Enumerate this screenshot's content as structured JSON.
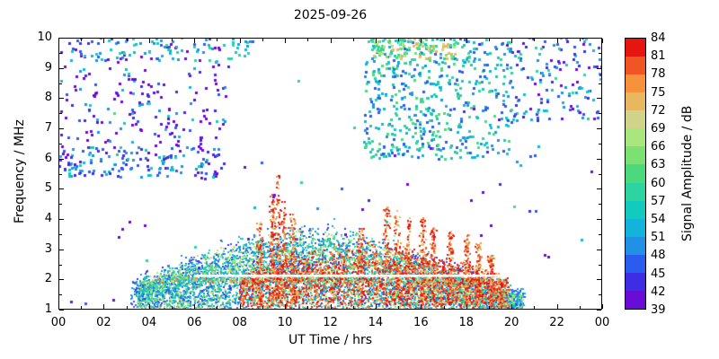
{
  "figure": {
    "background": "#ffffff",
    "frame_color": "#000000",
    "text_color": "#000000"
  },
  "chart_data": {
    "type": "heatmap",
    "title": "2025-09-26",
    "xlabel": "UT Time / hrs",
    "ylabel": "Frequency / MHz",
    "xlim": [
      0,
      24
    ],
    "ylim": [
      1,
      10
    ],
    "grid": false,
    "x_tick_values": [
      0,
      2,
      4,
      6,
      8,
      10,
      12,
      14,
      16,
      18,
      20,
      22,
      24
    ],
    "x_tick_labels": [
      "00",
      "02",
      "04",
      "06",
      "08",
      "10",
      "12",
      "14",
      "16",
      "18",
      "20",
      "22",
      "00"
    ],
    "y_tick_values": [
      1,
      2,
      3,
      4,
      5,
      6,
      7,
      8,
      9,
      10
    ],
    "colorbar": {
      "label": "Signal Amplitude / dB",
      "min": 39,
      "max": 84,
      "step": 3,
      "tick_values": [
        39,
        42,
        45,
        48,
        51,
        54,
        57,
        60,
        63,
        66,
        69,
        72,
        75,
        78,
        81,
        84
      ],
      "colors": [
        "#6a0cd8",
        "#3e2de4",
        "#2b5cf0",
        "#2191e6",
        "#13b4da",
        "#12cabe",
        "#2ed3a2",
        "#4cd97e",
        "#7ce072",
        "#a9e77e",
        "#d2d38a",
        "#e9b75f",
        "#f6923c",
        "#f05524",
        "#e61510"
      ]
    },
    "render": {
      "seed": 1337,
      "point_size_default": 2
    },
    "regions": [
      {
        "name": "upper-left-scatter",
        "shape": "box",
        "t": [
          0,
          7.5
        ],
        "f": [
          5.3,
          10
        ],
        "count": 240,
        "amp": [
          39,
          57
        ],
        "bias": "low",
        "size": 3
      },
      {
        "name": "upper-left-topband",
        "shape": "box",
        "t": [
          0.3,
          8.6
        ],
        "f": [
          9.2,
          10
        ],
        "count": 80,
        "amp": [
          45,
          60
        ],
        "bias": "mid",
        "size": 3
      },
      {
        "name": "left-6mhz-band",
        "shape": "box",
        "t": [
          0,
          7
        ],
        "f": [
          5.4,
          6.4
        ],
        "count": 110,
        "amp": [
          42,
          56
        ],
        "bias": "mid",
        "size": 3
      },
      {
        "name": "upper-right-scatter",
        "shape": "box",
        "t": [
          13.5,
          20
        ],
        "f": [
          6,
          10
        ],
        "count": 520,
        "amp": [
          45,
          63
        ],
        "bias": "mid",
        "size": 3
      },
      {
        "name": "far-right-scatter",
        "shape": "box",
        "t": [
          19.5,
          24
        ],
        "f": [
          7.2,
          10
        ],
        "count": 160,
        "amp": [
          39,
          60
        ],
        "bias": "mid",
        "size": 3
      },
      {
        "name": "upper-right-orange-band",
        "shape": "box",
        "t": [
          13.8,
          17.6
        ],
        "f": [
          9.3,
          10
        ],
        "count": 110,
        "amp": [
          57,
          75
        ],
        "bias": "mid",
        "size": 3
      },
      {
        "name": "background-noise",
        "shape": "box",
        "t": [
          0,
          24
        ],
        "f": [
          1,
          10
        ],
        "count": 110,
        "amp": [
          39,
          63
        ],
        "bias": "low",
        "size": 3
      },
      {
        "name": "dome-blue-fringe",
        "shape": "dome",
        "t": [
          3.2,
          20.6
        ],
        "peak_t": 11.2,
        "peak_f": 3.6,
        "base_f": 1.0,
        "width": 5.6,
        "count": 1500,
        "amp": [
          42,
          54
        ],
        "bias": "mid",
        "size": 2
      },
      {
        "name": "dome-body",
        "shape": "dome",
        "t": [
          3.5,
          20.5
        ],
        "peak_t": 11.0,
        "peak_f": 3.4,
        "base_f": 1.0,
        "width": 5.2,
        "count": 5200,
        "amp": [
          45,
          72
        ],
        "bias": "mid",
        "size": 2
      },
      {
        "name": "band-2mhz",
        "shape": "box",
        "t": [
          4.3,
          19.8
        ],
        "f": [
          1.88,
          2.05
        ],
        "count": 520,
        "amp": [
          48,
          81
        ],
        "bias": "mid",
        "size": 2
      },
      {
        "name": "dome-hot-core",
        "shape": "dome",
        "t": [
          8,
          19.9
        ],
        "peak_t": 13.8,
        "peak_f": 3.0,
        "base_f": 1.0,
        "width": 5.0,
        "count": 2100,
        "amp": [
          69,
          84
        ],
        "bias": "high",
        "size": 2
      },
      {
        "name": "red-spike-columns",
        "shape": "columns",
        "count": 1500,
        "amp": [
          66,
          84
        ],
        "bias": "high",
        "size": 2,
        "columns": [
          {
            "t": 9.7,
            "f": 5.5
          },
          {
            "t": 9.45,
            "f": 4.8
          },
          {
            "t": 9.95,
            "f": 4.6
          },
          {
            "t": 10.35,
            "f": 4.2
          },
          {
            "t": 8.9,
            "f": 3.9
          },
          {
            "t": 13.35,
            "f": 3.7
          },
          {
            "t": 14.5,
            "f": 4.4
          },
          {
            "t": 14.95,
            "f": 4.3
          },
          {
            "t": 15.45,
            "f": 4.1
          },
          {
            "t": 16.1,
            "f": 4.05
          },
          {
            "t": 16.55,
            "f": 3.8
          },
          {
            "t": 17.3,
            "f": 3.6
          },
          {
            "t": 18.05,
            "f": 3.5
          },
          {
            "t": 18.55,
            "f": 3.2
          },
          {
            "t": 19.1,
            "f": 2.8
          }
        ]
      },
      {
        "name": "quiet-row",
        "shape": "clear",
        "t": [
          6,
          19.7
        ],
        "f": [
          2.08,
          2.16
        ]
      }
    ]
  }
}
